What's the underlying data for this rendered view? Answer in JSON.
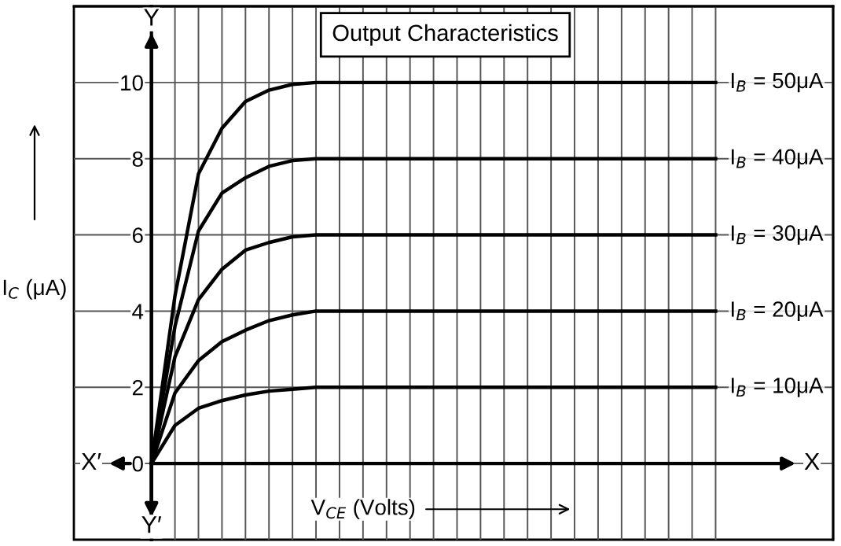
{
  "chart_data": {
    "type": "line",
    "title": "Output Characteristics",
    "xlabel": "V$_{CE}$ (Volts)",
    "ylabel": "I$_{C}$ (μA)",
    "categories": [
      null,
      null,
      null,
      null,
      null,
      null,
      null,
      null,
      null,
      null,
      null,
      null,
      null,
      null,
      null,
      null,
      null,
      null,
      null,
      null,
      null,
      null,
      null,
      null,
      null
    ],
    "series": [
      {
        "name": "I$_{B}$ = 50μA",
        "color": "#000000",
        "values": [
          0,
          4.4,
          7.6,
          8.8,
          9.5,
          9.8,
          9.95,
          10,
          10,
          10,
          10,
          10,
          10,
          10,
          10,
          10,
          10,
          10,
          10,
          10,
          10,
          10,
          10,
          10,
          10
        ]
      },
      {
        "name": "I$_{B}$ = 40μA",
        "color": "#000000",
        "values": [
          0,
          3.6,
          6.1,
          7.1,
          7.5,
          7.8,
          7.95,
          8,
          8,
          8,
          8,
          8,
          8,
          8,
          8,
          8,
          8,
          8,
          8,
          8,
          8,
          8,
          8,
          8,
          8
        ]
      },
      {
        "name": "I$_{B}$ = 30μA",
        "color": "#000000",
        "values": [
          0,
          2.8,
          4.3,
          5.1,
          5.6,
          5.8,
          5.95,
          6,
          6,
          6,
          6,
          6,
          6,
          6,
          6,
          6,
          6,
          6,
          6,
          6,
          6,
          6,
          6,
          6,
          6
        ]
      },
      {
        "name": "I$_{B}$ = 20μA",
        "color": "#000000",
        "values": [
          0,
          1.85,
          2.7,
          3.2,
          3.5,
          3.75,
          3.9,
          4,
          4,
          4,
          4,
          4,
          4,
          4,
          4,
          4,
          4,
          4,
          4,
          4,
          4,
          4,
          4,
          4,
          4
        ]
      },
      {
        "name": "I$_{B}$ = 10μA",
        "color": "#000000",
        "values": [
          0,
          1.0,
          1.45,
          1.65,
          1.8,
          1.9,
          1.95,
          2,
          2,
          2,
          2,
          2,
          2,
          2,
          2,
          2,
          2,
          2,
          2,
          2,
          2,
          2,
          2,
          2,
          2
        ]
      }
    ],
    "ylim": [
      -2,
      12
    ],
    "yticks": [
      0,
      2,
      4,
      6,
      8,
      10
    ],
    "tick_labels": "y",
    "grid": true,
    "legend": false,
    "marker": "none",
    "line_style": "solid",
    "annotations": [
      "X′",
      "X",
      "Y",
      "Y′"
    ]
  }
}
